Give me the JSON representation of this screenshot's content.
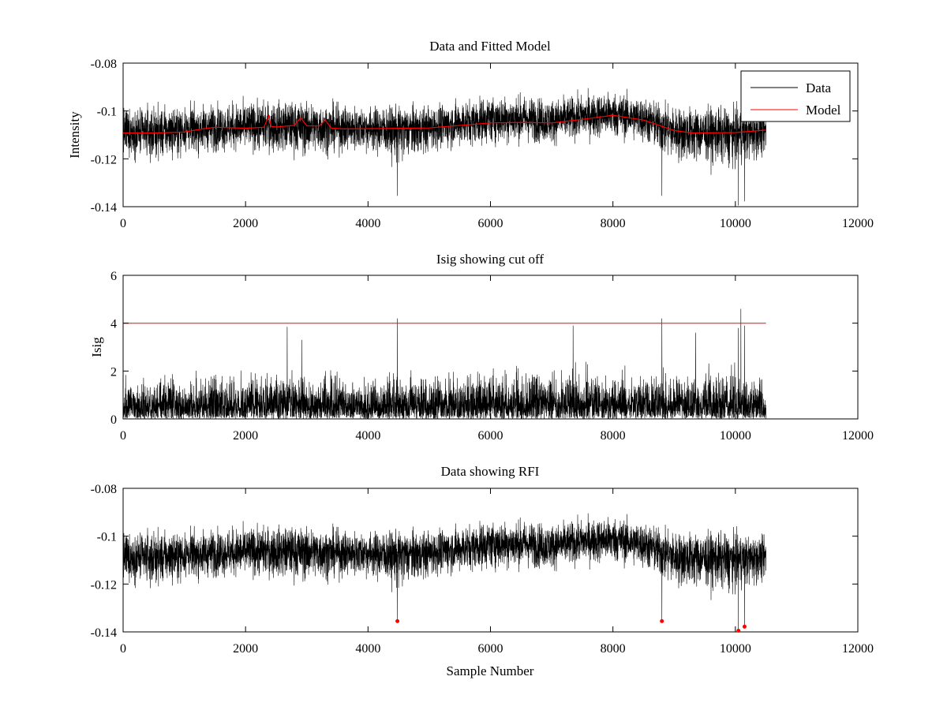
{
  "chart_data": [
    {
      "type": "line",
      "title": "Data and Fitted Model",
      "xlabel": "",
      "ylabel": "Intensity",
      "xlim": [
        0,
        12000
      ],
      "ylim": [
        -0.14,
        -0.08
      ],
      "xticks": [
        0,
        2000,
        4000,
        6000,
        8000,
        10000,
        12000
      ],
      "yticks": [
        -0.08,
        -0.1,
        -0.12,
        -0.14
      ],
      "ytick_labels": [
        "-0.08",
        "-0.1",
        "-0.12",
        "-0.14"
      ],
      "legend": {
        "position": "top-right",
        "entries": [
          "Data",
          "Model"
        ]
      },
      "series": [
        {
          "name": "Data",
          "color": "#000000",
          "n_samples": 10500,
          "envelope": {
            "x": [
              0,
              500,
              1000,
              1500,
              2000,
              2500,
              3000,
              3500,
              4000,
              4500,
              5000,
              5500,
              6000,
              6500,
              7000,
              7500,
              8000,
              8500,
              9000,
              9500,
              10000,
              10500
            ],
            "center": [
              -0.109,
              -0.109,
              -0.108,
              -0.107,
              -0.107,
              -0.106,
              -0.106,
              -0.107,
              -0.107,
              -0.107,
              -0.107,
              -0.105,
              -0.103,
              -0.103,
              -0.104,
              -0.102,
              -0.101,
              -0.103,
              -0.108,
              -0.109,
              -0.109,
              -0.108
            ],
            "max": [
              -0.088,
              -0.088,
              -0.089,
              -0.087,
              -0.086,
              -0.086,
              -0.087,
              -0.088,
              -0.089,
              -0.09,
              -0.089,
              -0.087,
              -0.085,
              -0.084,
              -0.086,
              -0.085,
              -0.083,
              -0.086,
              -0.089,
              -0.088,
              -0.09,
              -0.094
            ],
            "min": [
              -0.126,
              -0.131,
              -0.127,
              -0.126,
              -0.125,
              -0.128,
              -0.131,
              -0.127,
              -0.126,
              -0.136,
              -0.126,
              -0.124,
              -0.124,
              -0.123,
              -0.123,
              -0.121,
              -0.121,
              -0.123,
              -0.135,
              -0.133,
              -0.138,
              -0.128
            ]
          }
        },
        {
          "name": "Model",
          "color": "#ff0000",
          "x": [
            0,
            500,
            1000,
            1300,
            1500,
            2000,
            2300,
            2380,
            2420,
            2500,
            2800,
            2900,
            3000,
            3200,
            3300,
            3400,
            3600,
            4000,
            5000,
            6000,
            6500,
            7000,
            7500,
            8000,
            8500,
            9000,
            9300,
            10000,
            10500
          ],
          "y": [
            -0.1092,
            -0.1092,
            -0.1088,
            -0.1075,
            -0.1068,
            -0.1072,
            -0.1068,
            -0.102,
            -0.1065,
            -0.1067,
            -0.106,
            -0.1028,
            -0.1062,
            -0.1063,
            -0.1038,
            -0.1072,
            -0.1075,
            -0.1074,
            -0.1071,
            -0.105,
            -0.1048,
            -0.105,
            -0.1035,
            -0.1018,
            -0.1038,
            -0.1082,
            -0.1092,
            -0.109,
            -0.108
          ]
        }
      ]
    },
    {
      "type": "line",
      "title": "Isig showing cut off",
      "xlabel": "",
      "ylabel": "Isig",
      "xlim": [
        0,
        12000
      ],
      "ylim": [
        0,
        6
      ],
      "xticks": [
        0,
        2000,
        4000,
        6000,
        8000,
        10000,
        12000
      ],
      "yticks": [
        0,
        2,
        4,
        6
      ],
      "ytick_labels": [
        "0",
        "2",
        "4",
        "6"
      ],
      "series": [
        {
          "color": "#000000",
          "n_samples": 10500,
          "envelope": {
            "x": [
              0,
              500,
              1000,
              1500,
              2000,
              2500,
              3000,
              3500,
              4000,
              4500,
              5000,
              5500,
              6000,
              6500,
              7000,
              7500,
              8000,
              8500,
              9000,
              9500,
              10000,
              10500
            ],
            "typical_max": [
              2.5,
              2.8,
              2.6,
              2.8,
              2.7,
              2.9,
              2.8,
              2.7,
              2.6,
              2.8,
              2.7,
              2.9,
              3.1,
              3.2,
              3.0,
              3.1,
              3.0,
              3.0,
              3.0,
              2.8,
              2.9,
              2.2
            ]
          },
          "spikes": [
            {
              "x": 2680,
              "y": 3.85
            },
            {
              "x": 2920,
              "y": 3.3
            },
            {
              "x": 4480,
              "y": 4.2
            },
            {
              "x": 7350,
              "y": 3.9
            },
            {
              "x": 8800,
              "y": 4.2
            },
            {
              "x": 9350,
              "y": 3.6
            },
            {
              "x": 10050,
              "y": 3.8
            },
            {
              "x": 10090,
              "y": 4.6
            },
            {
              "x": 10150,
              "y": 3.9
            }
          ]
        },
        {
          "color": "#ff0000",
          "x": [
            0,
            10500
          ],
          "y": [
            4,
            4
          ]
        }
      ]
    },
    {
      "type": "line",
      "title": "Data showing RFI",
      "xlabel": "Sample Number",
      "ylabel": "",
      "xlim": [
        0,
        12000
      ],
      "ylim": [
        -0.14,
        -0.08
      ],
      "xticks": [
        0,
        2000,
        4000,
        6000,
        8000,
        10000,
        12000
      ],
      "yticks": [
        -0.08,
        -0.1,
        -0.12,
        -0.14
      ],
      "ytick_labels": [
        "-0.08",
        "-0.1",
        "-0.12",
        "-0.14"
      ],
      "series": [
        {
          "color": "#000000",
          "n_samples": 10500,
          "same_as": "Data"
        },
        {
          "type": "scatter",
          "color": "#ff0000",
          "x": [
            4480,
            8800,
            10050,
            10150
          ],
          "y": [
            -0.1355,
            -0.1355,
            -0.1395,
            -0.1378
          ]
        }
      ]
    }
  ]
}
